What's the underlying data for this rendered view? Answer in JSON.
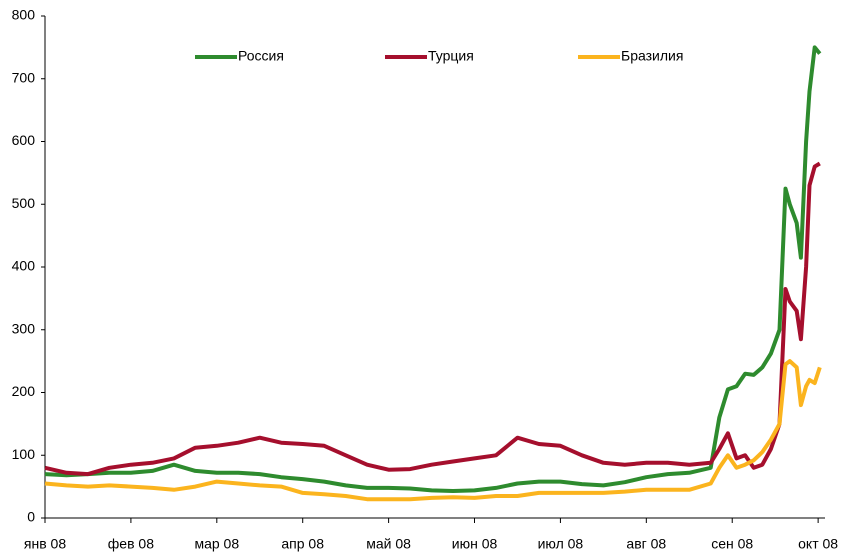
{
  "chart_data": {
    "type": "line",
    "x": [
      0,
      0.25,
      0.5,
      0.75,
      1,
      1.25,
      1.5,
      1.75,
      2,
      2.25,
      2.5,
      2.75,
      3,
      3.25,
      3.5,
      3.75,
      4,
      4.25,
      4.5,
      4.75,
      5,
      5.25,
      5.5,
      5.75,
      6,
      6.25,
      6.5,
      6.75,
      7,
      7.25,
      7.5,
      7.75,
      7.85,
      7.95,
      8.05,
      8.15,
      8.25,
      8.35,
      8.45,
      8.55,
      8.62,
      8.67,
      8.75,
      8.8,
      8.86,
      8.9,
      8.96,
      9.02
    ],
    "series": [
      {
        "name": "Россия",
        "color": "#2e8b2e",
        "values": [
          70,
          68,
          70,
          72,
          72,
          75,
          85,
          75,
          72,
          72,
          70,
          65,
          62,
          58,
          52,
          48,
          48,
          47,
          44,
          43,
          44,
          48,
          55,
          58,
          58,
          54,
          52,
          57,
          65,
          70,
          72,
          80,
          160,
          205,
          210,
          230,
          228,
          240,
          262,
          300,
          525,
          500,
          470,
          415,
          600,
          680,
          750,
          740
        ]
      },
      {
        "name": "Турция",
        "color": "#a50f2d",
        "values": [
          80,
          72,
          70,
          80,
          85,
          88,
          95,
          112,
          115,
          120,
          128,
          120,
          118,
          115,
          100,
          85,
          77,
          78,
          85,
          90,
          95,
          100,
          128,
          118,
          115,
          100,
          88,
          85,
          88,
          88,
          85,
          88,
          110,
          135,
          95,
          100,
          80,
          85,
          110,
          150,
          365,
          345,
          330,
          285,
          400,
          530,
          560,
          565
        ]
      },
      {
        "name": "Бразилия",
        "color": "#fbb41e",
        "values": [
          55,
          52,
          50,
          52,
          50,
          48,
          45,
          50,
          58,
          55,
          52,
          50,
          40,
          38,
          35,
          30,
          30,
          30,
          32,
          33,
          32,
          35,
          35,
          40,
          40,
          40,
          40,
          42,
          45,
          45,
          45,
          55,
          80,
          100,
          80,
          85,
          92,
          105,
          125,
          150,
          245,
          250,
          240,
          180,
          210,
          220,
          215,
          240
        ]
      }
    ],
    "xlim": [
      0,
      9.08
    ],
    "xticks": [
      {
        "value": 0,
        "label": "янв 08"
      },
      {
        "value": 1,
        "label": "фев 08"
      },
      {
        "value": 2,
        "label": "мар 08"
      },
      {
        "value": 3,
        "label": "апр 08"
      },
      {
        "value": 4,
        "label": "май 08"
      },
      {
        "value": 5,
        "label": "июн 08"
      },
      {
        "value": 6,
        "label": "июл 08"
      },
      {
        "value": 7,
        "label": "авг 08"
      },
      {
        "value": 8,
        "label": "сен 08"
      },
      {
        "value": 9,
        "label": "окт 08"
      }
    ],
    "ylim": [
      0,
      800
    ],
    "yticks": [
      0,
      100,
      200,
      300,
      400,
      500,
      600,
      700,
      800
    ],
    "grid": false,
    "legend": "top"
  }
}
